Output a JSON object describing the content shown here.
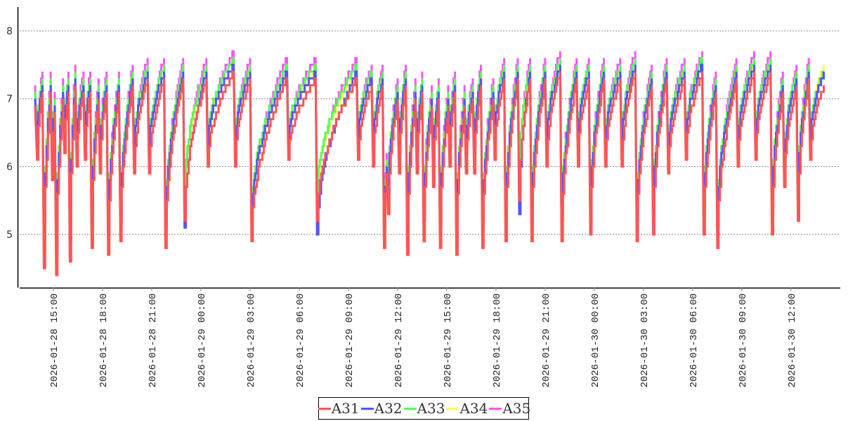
{
  "chart_data": {
    "type": "line",
    "title": "",
    "xlabel": "",
    "ylabel": "",
    "ylim": [
      4.2,
      8.35
    ],
    "y_ticks": [
      "5",
      "6",
      "7",
      "8"
    ],
    "grid": "horizontal dashed",
    "legend_position": "bottom-center",
    "x_ticks": [
      "2026-01-28  15:00",
      "2026-01-28  18:00",
      "2026-01-28  21:00",
      "2026-01-29  00:00",
      "2026-01-29  03:00",
      "2026-01-29  06:00",
      "2026-01-29  09:00",
      "2026-01-29  12:00",
      "2026-01-29  15:00",
      "2026-01-29  18:00",
      "2026-01-29  21:00",
      "2026-01-30  00:00",
      "2026-01-30  03:00",
      "2026-01-30  06:00",
      "2026-01-30  09:00",
      "2026-01-30  12:00"
    ],
    "start": "2026-01-28 13:53",
    "end": "2026-01-30 14:00",
    "drop_times": [
      "2026-01-28 14:00",
      "2026-01-28 14:25",
      "2026-01-28 14:55",
      "2026-01-28 15:10",
      "2026-01-28 15:40",
      "2026-01-28 16:00",
      "2026-01-28 16:25",
      "2026-01-28 16:55",
      "2026-01-28 17:20",
      "2026-01-28 17:50",
      "2026-01-28 18:20",
      "2026-01-28 19:05",
      "2026-01-28 19:55",
      "2026-01-28 20:50",
      "2026-01-28 21:50",
      "2026-01-28 23:00",
      "2026-01-29 00:25",
      "2026-01-29 02:05",
      "2026-01-29 03:05",
      "2026-01-29 05:20",
      "2026-01-29 07:05",
      "2026-01-29 09:35",
      "2026-01-29 10:30",
      "2026-01-29 11:10",
      "2026-01-29 11:25",
      "2026-01-29 12:05",
      "2026-01-29 12:35",
      "2026-01-29 13:10",
      "2026-01-29 13:35",
      "2026-01-29 14:10",
      "2026-01-29 14:35",
      "2026-01-29 15:10",
      "2026-01-29 15:35",
      "2026-01-29 16:10",
      "2026-01-29 16:40",
      "2026-01-29 17:10",
      "2026-01-29 17:55",
      "2026-01-29 18:35",
      "2026-01-29 19:25",
      "2026-01-29 20:10",
      "2026-01-29 21:05",
      "2026-01-29 22:00",
      "2026-01-29 23:00",
      "2026-01-29 23:45",
      "2026-01-30 00:40",
      "2026-01-30 01:40",
      "2026-01-30 02:35",
      "2026-01-30 03:35",
      "2026-01-30 04:30",
      "2026-01-30 05:35",
      "2026-01-30 06:40",
      "2026-01-30 07:30",
      "2026-01-30 08:45",
      "2026-01-30 09:50",
      "2026-01-30 10:50",
      "2026-01-30 11:35",
      "2026-01-30 12:25",
      "2026-01-30 13:10"
    ],
    "series": [
      {
        "name": "A31",
        "color": "#ff5555",
        "peaks_before_drop": [
          6.9,
          7.1,
          7.1,
          6.8,
          7.0,
          7.1,
          7.2,
          7.1,
          7.1,
          7.0,
          7.1,
          7.1,
          7.2,
          7.3,
          7.3,
          7.3,
          7.3,
          7.4,
          7.3,
          7.3,
          7.3,
          7.3,
          7.2,
          7.2,
          5.9,
          7.0,
          7.2,
          7.0,
          7.1,
          6.9,
          7.0,
          6.9,
          7.1,
          6.9,
          7.0,
          7.2,
          7.0,
          7.3,
          7.3,
          7.3,
          7.3,
          7.4,
          7.3,
          7.3,
          7.3,
          7.3,
          7.4,
          7.2,
          7.3,
          7.3,
          7.4,
          7.1,
          7.3,
          7.4,
          7.4,
          7.1,
          7.2,
          7.3
        ],
        "troughs": [
          6.1,
          4.5,
          5.8,
          4.4,
          6.2,
          4.6,
          6.0,
          6.1,
          4.8,
          5.9,
          4.7,
          4.9,
          5.9,
          5.9,
          4.8,
          5.2,
          6.0,
          6.0,
          4.9,
          6.1,
          5.2,
          6.1,
          6.0,
          4.8,
          5.3,
          5.9,
          4.7,
          5.9,
          4.9,
          5.7,
          4.8,
          6.0,
          4.7,
          5.9,
          5.9,
          4.8,
          6.1,
          4.9,
          5.5,
          4.9,
          6.0,
          4.9,
          6.0,
          5.0,
          6.0,
          6.0,
          4.9,
          5.0,
          5.9,
          6.1,
          5.0,
          4.8,
          6.0,
          6.1,
          5.0,
          5.7,
          5.2,
          6.1
        ],
        "end_value": 7.2
      },
      {
        "name": "A32",
        "color": "#5555ff",
        "peaks_before_drop": [
          7.0,
          7.2,
          7.2,
          6.9,
          7.1,
          7.2,
          7.3,
          7.2,
          7.2,
          7.1,
          7.2,
          7.2,
          7.3,
          7.4,
          7.4,
          7.4,
          7.4,
          7.5,
          7.4,
          7.4,
          7.4,
          7.4,
          7.3,
          7.3,
          6.0,
          7.1,
          7.3,
          7.1,
          7.2,
          7.0,
          7.1,
          7.0,
          7.2,
          7.0,
          7.1,
          7.3,
          7.1,
          7.4,
          7.4,
          7.4,
          7.4,
          7.5,
          7.4,
          7.4,
          7.4,
          7.4,
          7.5,
          7.3,
          7.4,
          7.4,
          7.5,
          7.2,
          7.4,
          7.5,
          7.5,
          7.2,
          7.3,
          7.4
        ],
        "troughs": [
          6.4,
          4.8,
          6.1,
          4.7,
          6.5,
          4.9,
          6.3,
          6.4,
          5.1,
          6.2,
          5.0,
          5.2,
          6.2,
          6.2,
          5.1,
          5.1,
          6.3,
          6.3,
          5.2,
          6.4,
          5.0,
          6.4,
          6.3,
          5.1,
          5.6,
          6.2,
          5.0,
          6.2,
          5.2,
          6.0,
          5.1,
          6.3,
          5.0,
          6.2,
          6.2,
          5.1,
          6.4,
          5.2,
          5.3,
          5.2,
          6.3,
          5.2,
          6.3,
          5.3,
          6.3,
          6.3,
          5.2,
          5.3,
          6.2,
          6.4,
          5.3,
          5.1,
          6.3,
          6.4,
          5.3,
          6.0,
          5.5,
          6.4
        ],
        "end_value": 7.4
      },
      {
        "name": "A33",
        "color": "#55ff55",
        "peaks_before_drop": [
          7.1,
          7.3,
          7.3,
          7.0,
          7.2,
          7.3,
          7.4,
          7.3,
          7.3,
          7.2,
          7.3,
          7.3,
          7.4,
          7.5,
          7.5,
          7.5,
          7.5,
          7.6,
          7.5,
          7.5,
          7.5,
          7.5,
          7.4,
          7.4,
          6.1,
          7.2,
          7.4,
          7.2,
          7.3,
          7.1,
          7.2,
          7.1,
          7.3,
          7.1,
          7.2,
          7.4,
          7.2,
          7.5,
          7.5,
          7.5,
          7.5,
          7.6,
          7.5,
          7.5,
          7.5,
          7.5,
          7.6,
          7.4,
          7.5,
          7.5,
          7.6,
          7.3,
          7.5,
          7.6,
          7.6,
          7.3,
          7.4,
          7.5
        ],
        "troughs": [
          6.5,
          4.9,
          6.2,
          4.8,
          6.6,
          5.0,
          6.4,
          6.5,
          5.2,
          6.3,
          5.1,
          5.3,
          6.3,
          6.3,
          5.2,
          5.6,
          6.4,
          6.4,
          5.3,
          6.5,
          5.6,
          6.5,
          6.4,
          5.2,
          5.7,
          6.3,
          5.1,
          6.3,
          5.3,
          6.1,
          5.2,
          6.4,
          5.1,
          6.3,
          6.3,
          5.2,
          6.5,
          5.3,
          5.9,
          5.3,
          6.4,
          5.3,
          6.4,
          5.4,
          6.4,
          6.4,
          5.3,
          5.4,
          6.3,
          6.5,
          5.4,
          5.2,
          6.4,
          6.5,
          5.4,
          6.1,
          5.6,
          6.5
        ],
        "end_value": 7.4
      },
      {
        "name": "A34",
        "color": "#ffff55",
        "peaks_before_drop": [
          7.0,
          7.2,
          7.2,
          6.9,
          7.1,
          7.2,
          7.3,
          7.2,
          7.2,
          7.1,
          7.2,
          7.2,
          7.3,
          7.4,
          7.4,
          7.4,
          7.4,
          7.5,
          7.4,
          7.4,
          7.4,
          7.4,
          7.3,
          7.3,
          6.0,
          7.1,
          7.3,
          7.1,
          7.2,
          7.0,
          7.1,
          7.0,
          7.2,
          7.0,
          7.1,
          7.3,
          7.1,
          7.4,
          7.4,
          7.4,
          7.4,
          7.5,
          7.4,
          7.4,
          7.4,
          7.4,
          7.5,
          7.3,
          7.4,
          7.4,
          7.5,
          7.2,
          7.4,
          7.5,
          7.5,
          7.2,
          7.4,
          7.4
        ],
        "troughs": [
          6.5,
          4.9,
          6.2,
          4.8,
          6.6,
          5.0,
          6.4,
          6.5,
          5.2,
          6.3,
          5.1,
          5.3,
          6.3,
          6.3,
          5.2,
          5.6,
          6.4,
          6.4,
          5.3,
          6.5,
          5.6,
          6.5,
          6.4,
          5.2,
          5.7,
          6.3,
          5.1,
          6.3,
          5.3,
          6.1,
          5.2,
          6.4,
          5.1,
          6.3,
          6.3,
          5.2,
          6.5,
          5.3,
          5.9,
          5.3,
          6.4,
          5.3,
          6.4,
          5.4,
          6.4,
          6.4,
          5.3,
          5.4,
          6.3,
          6.5,
          5.4,
          5.2,
          6.4,
          6.5,
          5.4,
          6.1,
          5.6,
          6.5
        ],
        "end_value": 7.5
      },
      {
        "name": "A35",
        "color": "#ff55ff",
        "peaks_before_drop": [
          7.2,
          7.4,
          7.4,
          7.1,
          7.3,
          7.4,
          7.5,
          7.4,
          7.4,
          7.3,
          7.4,
          7.4,
          7.5,
          7.6,
          7.6,
          7.6,
          7.6,
          7.7,
          7.6,
          7.6,
          7.6,
          7.6,
          7.5,
          7.5,
          6.2,
          7.3,
          7.5,
          7.3,
          7.4,
          7.2,
          7.3,
          7.2,
          7.4,
          7.2,
          7.3,
          7.5,
          7.3,
          7.6,
          7.6,
          7.6,
          7.6,
          7.7,
          7.6,
          7.6,
          7.6,
          7.6,
          7.7,
          7.5,
          7.6,
          7.6,
          7.7,
          7.4,
          7.6,
          7.7,
          7.7,
          7.4,
          7.5,
          7.6
        ],
        "troughs": [
          6.4,
          4.8,
          6.1,
          4.7,
          6.5,
          4.9,
          6.3,
          6.4,
          5.1,
          6.2,
          5.0,
          5.2,
          6.2,
          6.2,
          5.1,
          5.5,
          6.3,
          6.3,
          5.2,
          6.4,
          5.5,
          6.4,
          6.3,
          5.1,
          5.6,
          6.2,
          5.0,
          6.2,
          5.2,
          6.0,
          5.1,
          6.3,
          5.0,
          6.2,
          6.2,
          5.1,
          6.4,
          5.2,
          5.8,
          5.2,
          6.3,
          5.2,
          6.3,
          5.3,
          6.3,
          6.3,
          5.2,
          5.3,
          6.2,
          6.4,
          5.3,
          5.1,
          6.3,
          6.4,
          5.3,
          6.0,
          5.5,
          6.4
        ],
        "end_value": 7.4
      }
    ]
  }
}
